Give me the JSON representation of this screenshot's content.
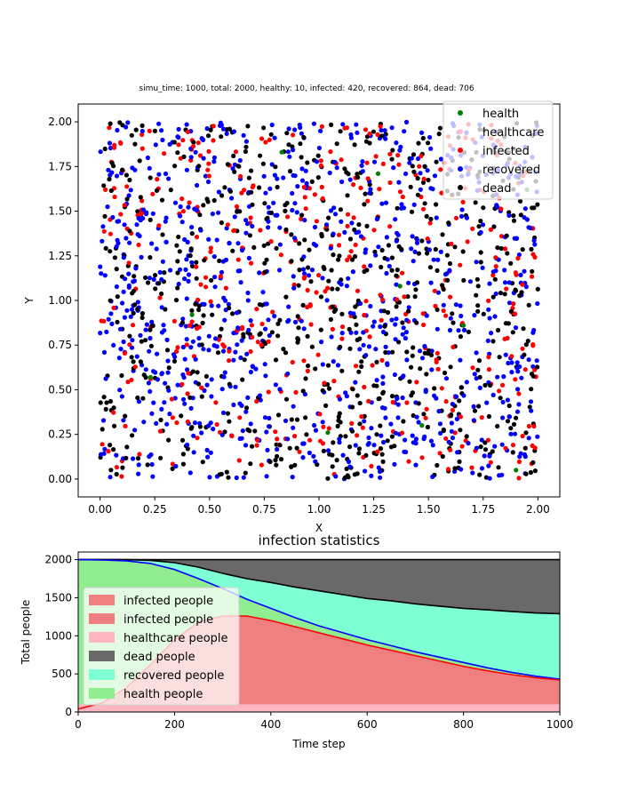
{
  "colors": {
    "health": "#008000",
    "healthcare": "#ffc0cb",
    "infected": "#ff0000",
    "recovered": "#0000ff",
    "dead": "#000000",
    "area_infected": "#f08080",
    "area_healthcare": "#ffb6c1",
    "area_dead": "#696969",
    "area_recovered": "#7fffd4",
    "area_health": "#90ee90"
  },
  "chart_data": [
    {
      "type": "scatter",
      "title": "simu_time: 1000, total: 2000, healthy: 10, infected: 420, recovered: 864, dead: 706",
      "xlabel": "X",
      "ylabel": "Y",
      "xlim": [
        -0.1,
        2.1
      ],
      "ylim": [
        -0.1,
        2.1
      ],
      "x_ticks": [
        0.0,
        0.25,
        0.5,
        0.75,
        1.0,
        1.25,
        1.5,
        1.75,
        2.0
      ],
      "x_tick_labels": [
        "0.00",
        "0.25",
        "0.50",
        "0.75",
        "1.00",
        "1.25",
        "1.50",
        "1.75",
        "2.00"
      ],
      "y_ticks": [
        0.0,
        0.25,
        0.5,
        0.75,
        1.0,
        1.25,
        1.5,
        1.75,
        2.0
      ],
      "y_tick_labels": [
        "0.00",
        "0.25",
        "0.50",
        "0.75",
        "1.00",
        "1.25",
        "1.50",
        "1.75",
        "2.00"
      ],
      "legend": [
        "health",
        "healthcare",
        "infected",
        "recovered",
        "dead"
      ],
      "legend_position": "top-right",
      "grid": false,
      "counts": {
        "health": 10,
        "healthcare": 0,
        "infected": 420,
        "recovered": 864,
        "dead": 706
      },
      "points": {
        "health": [
          [
            1.27,
            1.71
          ],
          [
            1.37,
            1.08
          ],
          [
            1.66,
            0.86
          ],
          [
            1.9,
            0.05
          ],
          [
            1.95,
            1.62
          ],
          [
            0.42,
            0.92
          ],
          [
            1.04,
            0.26
          ],
          [
            0.83,
            1.83
          ],
          [
            1.47,
            0.3
          ],
          [
            0.23,
            0.57
          ]
        ]
      }
    },
    {
      "type": "area",
      "title": "infection statistics",
      "xlabel": "Time step",
      "ylabel": "Total people",
      "xlim": [
        0,
        1000
      ],
      "ylim": [
        0,
        2100
      ],
      "x_ticks": [
        0,
        200,
        400,
        600,
        800,
        1000
      ],
      "x_tick_labels": [
        "0",
        "200",
        "400",
        "600",
        "800",
        "1000"
      ],
      "y_ticks": [
        0,
        500,
        1000,
        1500,
        2000
      ],
      "y_tick_labels": [
        "0",
        "500",
        "1000",
        "1500",
        "2000"
      ],
      "legend": [
        "infected people",
        "infected people",
        "healthcare people",
        "dead people",
        "recovered people",
        "health people"
      ],
      "legend_position": "center-left",
      "grid": false,
      "x": [
        0,
        50,
        100,
        150,
        200,
        250,
        300,
        350,
        400,
        450,
        500,
        550,
        600,
        650,
        700,
        750,
        800,
        850,
        900,
        950,
        1000
      ],
      "series": [
        {
          "name": "healthcare people",
          "values": [
            100,
            100,
            100,
            100,
            100,
            100,
            100,
            100,
            100,
            100,
            100,
            100,
            100,
            100,
            100,
            100,
            100,
            100,
            100,
            100,
            100
          ]
        },
        {
          "name": "infected people",
          "values": [
            40,
            120,
            320,
            620,
            950,
            1180,
            1260,
            1260,
            1200,
            1120,
            1040,
            960,
            880,
            810,
            740,
            670,
            600,
            540,
            490,
            450,
            420
          ]
        },
        {
          "name": "health people",
          "values": [
            2000,
            1995,
            1985,
            1950,
            1870,
            1750,
            1620,
            1480,
            1360,
            1240,
            1130,
            1040,
            950,
            870,
            790,
            720,
            650,
            580,
            520,
            470,
            430
          ]
        },
        {
          "name": "recovered people",
          "values": [
            2000,
            2000,
            2000,
            1990,
            1960,
            1900,
            1820,
            1750,
            1700,
            1640,
            1590,
            1540,
            1490,
            1460,
            1420,
            1390,
            1360,
            1340,
            1320,
            1300,
            1290
          ]
        },
        {
          "name": "dead people",
          "values": [
            2000,
            2000,
            2000,
            2000,
            2000,
            2000,
            2000,
            2000,
            2000,
            2000,
            2000,
            2000,
            2000,
            2000,
            2000,
            2000,
            2000,
            2000,
            2000,
            2000,
            2000
          ]
        }
      ]
    }
  ]
}
